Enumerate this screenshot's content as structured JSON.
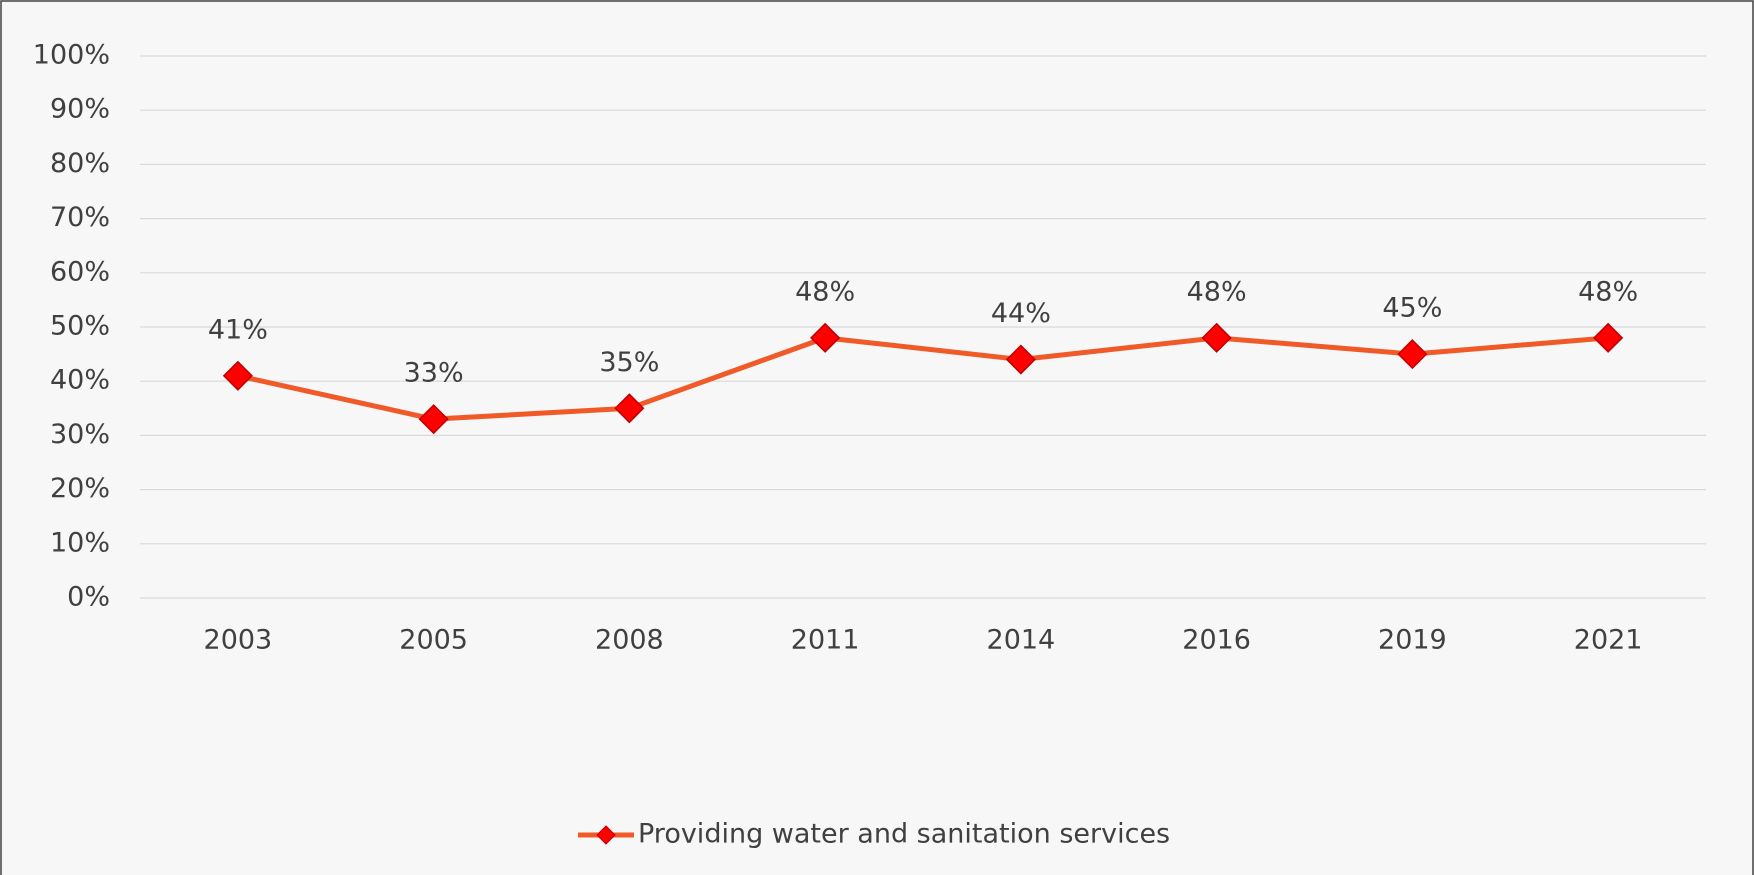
{
  "chart_data": {
    "type": "line",
    "categories": [
      "2003",
      "2005",
      "2008",
      "2011",
      "2014",
      "2016",
      "2019",
      "2021"
    ],
    "series": [
      {
        "name": "Providing water and sanitation services",
        "color": "#f05a28",
        "marker_color": "#ff0000",
        "values": [
          41,
          33,
          35,
          48,
          44,
          48,
          45,
          48
        ],
        "value_labels": [
          "41%",
          "33%",
          "35%",
          "48%",
          "44%",
          "48%",
          "45%",
          "48%"
        ]
      }
    ],
    "ylim": [
      0,
      100
    ],
    "yticks": [
      {
        "value": 0,
        "label": "0%"
      },
      {
        "value": 10,
        "label": "10%"
      },
      {
        "value": 20,
        "label": "20%"
      },
      {
        "value": 30,
        "label": "30%"
      },
      {
        "value": 40,
        "label": "40%"
      },
      {
        "value": 50,
        "label": "50%"
      },
      {
        "value": 60,
        "label": "60%"
      },
      {
        "value": 70,
        "label": "70%"
      },
      {
        "value": 80,
        "label": "80%"
      },
      {
        "value": 90,
        "label": "90%"
      },
      {
        "value": 100,
        "label": "100%"
      }
    ],
    "grid": true,
    "legend": "bottom"
  }
}
